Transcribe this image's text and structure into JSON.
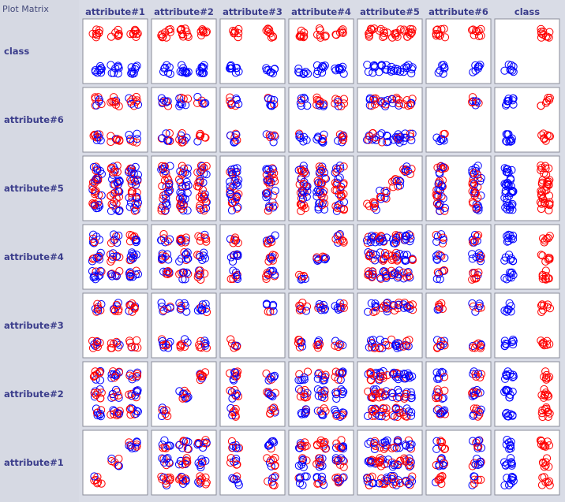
{
  "panel": {
    "title": "Plot Matrix"
  },
  "chart_data": {
    "type": "scatter",
    "title": "Plot Matrix",
    "columns": [
      "attribute#1",
      "attribute#2",
      "attribute#3",
      "attribute#4",
      "attribute#5",
      "attribute#6",
      "class"
    ],
    "rows": [
      "class",
      "attribute#6",
      "attribute#5",
      "attribute#4",
      "attribute#3",
      "attribute#2",
      "attribute#1"
    ],
    "levels": {
      "attribute#1": 3,
      "attribute#2": 3,
      "attribute#3": 2,
      "attribute#4": 3,
      "attribute#5": 4,
      "attribute#6": 2,
      "class": 2
    },
    "class_colors": {
      "class 1": "#ff0000",
      "class 0": "#0000ff"
    },
    "marker": "open-circle",
    "grid": false,
    "legend": "none"
  }
}
